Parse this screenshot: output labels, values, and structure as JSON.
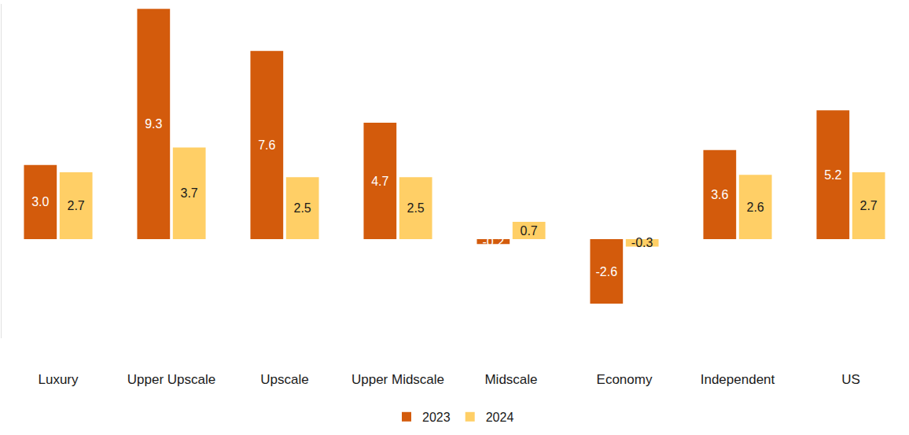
{
  "chart_data": {
    "type": "bar",
    "categories": [
      "Luxury",
      "Upper Upscale",
      "Upscale",
      "Upper Midscale",
      "Midscale",
      "Economy",
      "Independent",
      "US"
    ],
    "series": [
      {
        "name": "2023",
        "color": "#d35b0c",
        "values": [
          3.0,
          9.3,
          7.6,
          4.7,
          -0.2,
          -2.6,
          3.6,
          5.2
        ],
        "value_labels": [
          "3.0",
          "9.3",
          "7.6",
          "4.7",
          "-0.2",
          "-2.6",
          "3.6",
          "5.2"
        ]
      },
      {
        "name": "2024",
        "color": "#ffcf66",
        "values": [
          2.7,
          3.7,
          2.5,
          2.5,
          0.7,
          -0.3,
          2.6,
          2.7
        ],
        "value_labels": [
          "2.7",
          "3.7",
          "2.5",
          "2.5",
          "0.7",
          "-0.3",
          "2.6",
          "2.7"
        ]
      }
    ],
    "ylim": [
      -4,
      9.5
    ],
    "grid": false,
    "legend": "bottom",
    "data_labels": true,
    "tick_labels": "x"
  }
}
